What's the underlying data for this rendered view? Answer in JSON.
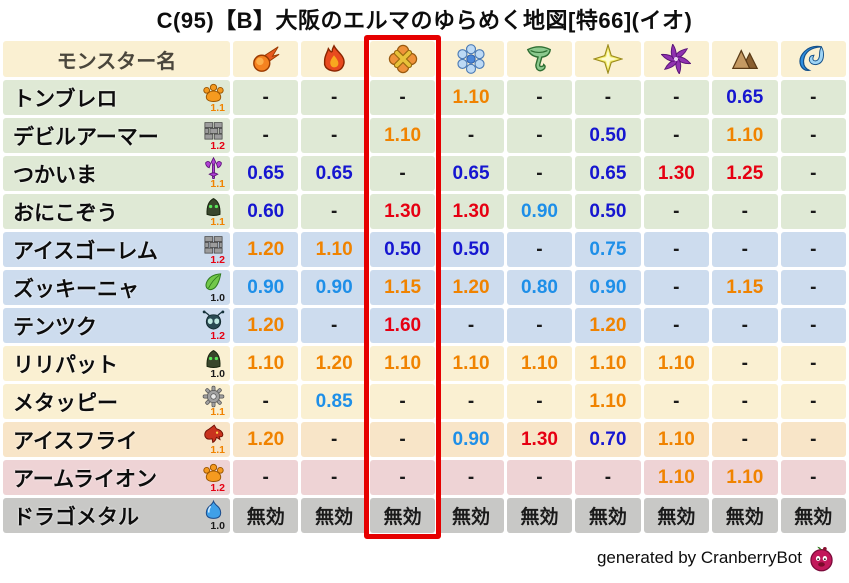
{
  "title": "C(95)【B】大阪のエルマのゆらめく地図[特66](イオ)",
  "footer": {
    "credit": "generated by CranberryBot"
  },
  "colors": {
    "boost_high": "#e60012",
    "boost": "#f08300",
    "resist": "#1e8fe8",
    "resist_high": "#1616d0",
    "neutral": "#1a1a1a",
    "highlight_box": "#e60000",
    "header_text": "#4a463c",
    "levels": {
      "1.0": "#1a1a1a",
      "1.1": "#f08300",
      "1.2": "#e60012"
    },
    "row_groups": {
      "green": "#dfe9d5",
      "blue": "#cddcee",
      "cream": "#faf0d2",
      "peach": "#f8e5c8",
      "pink": "#eed3d5",
      "gray": "#c8c8c6",
      "header": "#faf0d2"
    }
  },
  "table": {
    "name_header": "モンスター名",
    "immune_label": "無効",
    "none_label": "-",
    "highlighted_column_index": 2,
    "elements": [
      {
        "id": "mera",
        "icon": "fireball-icon"
      },
      {
        "id": "gira",
        "icon": "flame-icon"
      },
      {
        "id": "io",
        "icon": "explosion-icon"
      },
      {
        "id": "hyado",
        "icon": "snowflake-icon"
      },
      {
        "id": "bagi",
        "icon": "tornado-icon"
      },
      {
        "id": "dein",
        "icon": "light-star-icon"
      },
      {
        "id": "doruma",
        "icon": "dark-pinwheel-icon"
      },
      {
        "id": "jibaria",
        "icon": "mountain-icon"
      },
      {
        "id": "mizu",
        "icon": "wave-icon"
      }
    ],
    "rows": [
      {
        "name": "トンブレロ",
        "icon": "paw",
        "level": "1.1",
        "group": "green",
        "values": [
          "-",
          "-",
          "-",
          "1.10",
          "-",
          "-",
          "-",
          "0.65",
          "-"
        ]
      },
      {
        "name": "デビルアーマー",
        "icon": "brick",
        "level": "1.2",
        "group": "green",
        "values": [
          "-",
          "-",
          "1.10",
          "-",
          "-",
          "0.50",
          "-",
          "1.10",
          "-"
        ]
      },
      {
        "name": "つかいま",
        "icon": "trident",
        "level": "1.1",
        "group": "green",
        "values": [
          "0.65",
          "0.65",
          "-",
          "0.65",
          "-",
          "0.65",
          "1.30",
          "1.25",
          "-"
        ]
      },
      {
        "name": "おにこぞう",
        "icon": "blob",
        "level": "1.1",
        "group": "green",
        "values": [
          "0.60",
          "-",
          "1.30",
          "1.30",
          "0.90",
          "0.50",
          "-",
          "-",
          "-"
        ]
      },
      {
        "name": "アイスゴーレム",
        "icon": "brick",
        "level": "1.2",
        "group": "blue",
        "values": [
          "1.20",
          "1.10",
          "0.50",
          "0.50",
          "-",
          "0.75",
          "-",
          "-",
          "-"
        ]
      },
      {
        "name": "ズッキーニャ",
        "icon": "leaf",
        "level": "1.0",
        "group": "blue",
        "values": [
          "0.90",
          "0.90",
          "1.15",
          "1.20",
          "0.80",
          "0.90",
          "-",
          "1.15",
          "-"
        ]
      },
      {
        "name": "テンツク",
        "icon": "bug",
        "level": "1.2",
        "group": "blue",
        "values": [
          "1.20",
          "-",
          "1.60",
          "-",
          "-",
          "1.20",
          "-",
          "-",
          "-"
        ]
      },
      {
        "name": "リリパット",
        "icon": "blob",
        "level": "1.0",
        "group": "cream",
        "values": [
          "1.10",
          "1.20",
          "1.10",
          "1.10",
          "1.10",
          "1.10",
          "1.10",
          "-",
          "-"
        ]
      },
      {
        "name": "メタッピー",
        "icon": "gear",
        "level": "1.1",
        "group": "cream",
        "values": [
          "-",
          "0.85",
          "-",
          "-",
          "-",
          "1.10",
          "-",
          "-",
          "-"
        ]
      },
      {
        "name": "アイスフライ",
        "icon": "dragon",
        "level": "1.1",
        "group": "peach",
        "values": [
          "1.20",
          "-",
          "-",
          "0.90",
          "1.30",
          "0.70",
          "1.10",
          "-",
          "-"
        ]
      },
      {
        "name": "アームライオン",
        "icon": "paw",
        "level": "1.2",
        "group": "pink",
        "values": [
          "-",
          "-",
          "-",
          "-",
          "-",
          "-",
          "1.10",
          "1.10",
          "-"
        ]
      },
      {
        "name": "ドラゴメタル",
        "icon": "slime",
        "level": "1.0",
        "group": "gray",
        "values": [
          "無効",
          "無効",
          "無効",
          "無効",
          "無効",
          "無効",
          "無効",
          "無効",
          "無効"
        ]
      }
    ]
  },
  "chart_data": {
    "type": "table",
    "title": "C(95)【B】大阪のエルマのゆらめく地図[特66](イオ)",
    "columns": [
      "モンスター名",
      "fireball",
      "flame",
      "explosion",
      "snowflake",
      "tornado",
      "light-star",
      "dark-pinwheel",
      "mountain",
      "wave"
    ],
    "highlighted_column": "explosion",
    "legend_note": "values are damage multipliers; 無効 = immune; - = no data; subscript number beside monster icon is its scale (1.0/1.1/1.2)",
    "rows": [
      [
        "トンブレロ",
        "1.1",
        "-",
        "-",
        "-",
        "1.10",
        "-",
        "-",
        "-",
        "0.65",
        "-"
      ],
      [
        "デビルアーマー",
        "1.2",
        "-",
        "-",
        "1.10",
        "-",
        "-",
        "0.50",
        "-",
        "1.10",
        "-"
      ],
      [
        "つかいま",
        "1.1",
        "0.65",
        "0.65",
        "-",
        "0.65",
        "-",
        "0.65",
        "1.30",
        "1.25",
        "-"
      ],
      [
        "おにこぞう",
        "1.1",
        "0.60",
        "-",
        "1.30",
        "1.30",
        "0.90",
        "0.50",
        "-",
        "-",
        "-"
      ],
      [
        "アイスゴーレム",
        "1.2",
        "1.20",
        "1.10",
        "0.50",
        "0.50",
        "-",
        "0.75",
        "-",
        "-",
        "-"
      ],
      [
        "ズッキーニャ",
        "1.0",
        "0.90",
        "0.90",
        "1.15",
        "1.20",
        "0.80",
        "0.90",
        "-",
        "1.15",
        "-"
      ],
      [
        "テンツク",
        "1.2",
        "1.20",
        "-",
        "1.60",
        "-",
        "-",
        "1.20",
        "-",
        "-",
        "-"
      ],
      [
        "リリパット",
        "1.0",
        "1.10",
        "1.20",
        "1.10",
        "1.10",
        "1.10",
        "1.10",
        "1.10",
        "-",
        "-"
      ],
      [
        "メタッピー",
        "1.1",
        "-",
        "0.85",
        "-",
        "-",
        "-",
        "1.10",
        "-",
        "-",
        "-"
      ],
      [
        "アイスフライ",
        "1.1",
        "1.20",
        "-",
        "-",
        "0.90",
        "1.30",
        "0.70",
        "1.10",
        "-",
        "-"
      ],
      [
        "アームライオン",
        "1.2",
        "-",
        "-",
        "-",
        "-",
        "-",
        "-",
        "1.10",
        "1.10",
        "-"
      ],
      [
        "ドラゴメタル",
        "1.0",
        "無効",
        "無効",
        "無効",
        "無効",
        "無効",
        "無効",
        "無効",
        "無効",
        "無効"
      ]
    ]
  }
}
